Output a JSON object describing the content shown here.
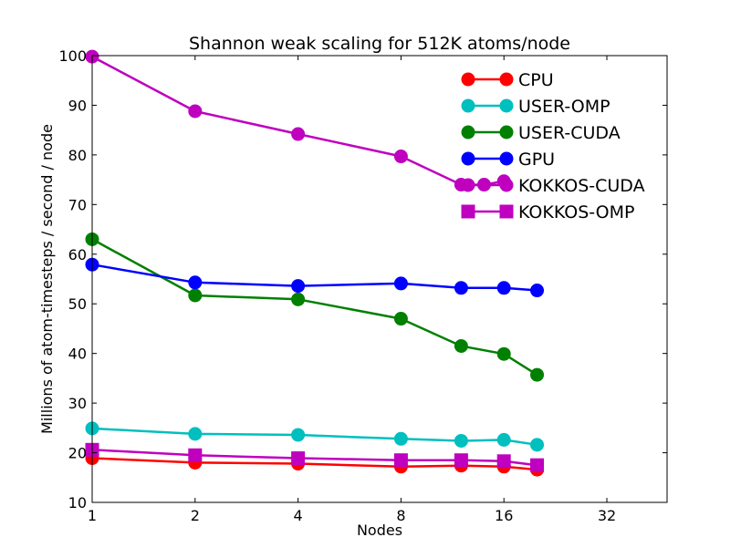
{
  "chart_data": {
    "type": "line",
    "title": "Shannon weak scaling for 512K atoms/node",
    "xlabel": "Nodes",
    "ylabel": "Millions of atom-timesteps / second / node",
    "x_scale": "log2",
    "xlim": [
      1,
      48
    ],
    "ylim": [
      10,
      100
    ],
    "x_ticks": [
      1,
      2,
      4,
      8,
      16,
      32
    ],
    "y_ticks": [
      10,
      20,
      30,
      40,
      50,
      60,
      70,
      80,
      90,
      100
    ],
    "x_tick_labels": [
      "1",
      "2",
      "4",
      "8",
      "16",
      "32"
    ],
    "y_tick_labels": [
      "10",
      "20",
      "30",
      "40",
      "50",
      "60",
      "70",
      "80",
      "90",
      "100"
    ],
    "grid": false,
    "legend_position": "top-right",
    "series": [
      {
        "name": "CPU",
        "color": "#ff0000",
        "marker": "circle",
        "x": [
          1,
          2,
          4,
          8,
          12,
          16,
          20
        ],
        "y": [
          18.9,
          18.0,
          17.8,
          17.2,
          17.4,
          17.2,
          16.6
        ]
      },
      {
        "name": "USER-OMP",
        "color": "#00bfbf",
        "marker": "circle",
        "x": [
          1,
          2,
          4,
          8,
          12,
          16,
          20
        ],
        "y": [
          24.9,
          23.8,
          23.6,
          22.8,
          22.4,
          22.6,
          21.6
        ]
      },
      {
        "name": "USER-CUDA",
        "color": "#008000",
        "marker": "circle",
        "x": [
          1,
          2,
          4,
          8,
          12,
          16,
          20
        ],
        "y": [
          63.0,
          51.7,
          50.9,
          47.0,
          41.5,
          39.9,
          35.7
        ]
      },
      {
        "name": "GPU",
        "color": "#0000ff",
        "marker": "circle",
        "x": [
          1,
          2,
          4,
          8,
          12,
          16,
          20
        ],
        "y": [
          57.9,
          54.3,
          53.6,
          54.1,
          53.2,
          53.2,
          52.7
        ]
      },
      {
        "name": "KOKKOS-CUDA",
        "color": "#bf00bf",
        "marker": "circle",
        "x": [
          1,
          2,
          4,
          8,
          12,
          14,
          16
        ],
        "y": [
          99.8,
          88.8,
          84.2,
          79.7,
          74.0,
          74.0,
          74.7
        ]
      },
      {
        "name": "KOKKOS-OMP",
        "color": "#bf00bf",
        "marker": "square",
        "x": [
          1,
          2,
          4,
          8,
          12,
          16,
          20
        ],
        "y": [
          20.6,
          19.5,
          18.9,
          18.5,
          18.5,
          18.3,
          17.5
        ]
      }
    ]
  }
}
